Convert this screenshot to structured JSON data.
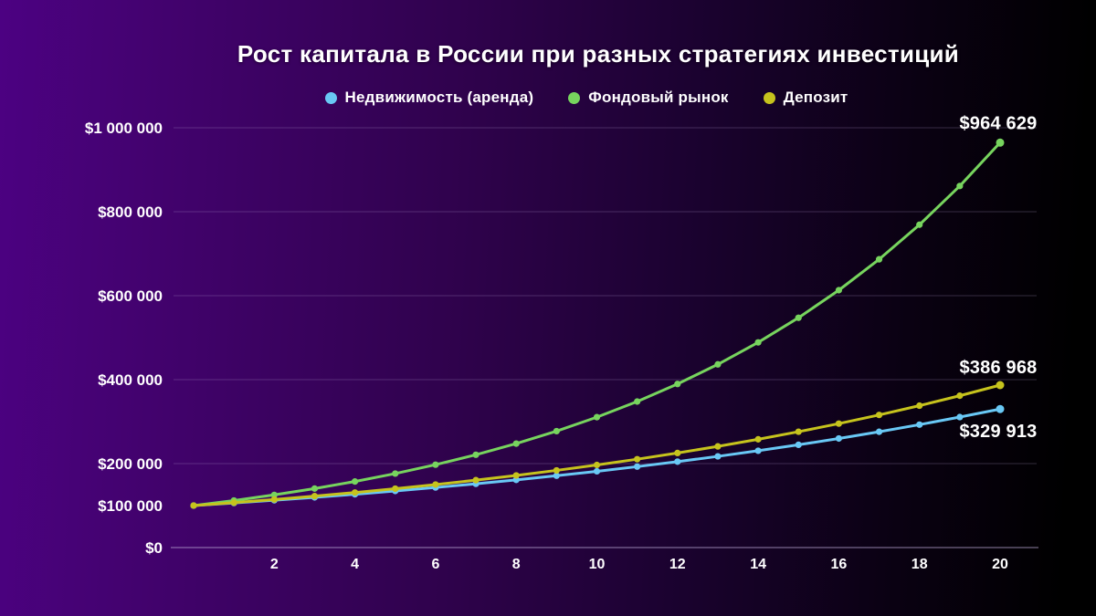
{
  "title": "Рост капитала в России при разных стратегиях инвестиций",
  "chart_data": {
    "type": "line",
    "title": "Рост капитала в России при разных стратегиях инвестиций",
    "xlabel": "",
    "ylabel": "",
    "xlim": [
      0,
      20
    ],
    "ylim": [
      0,
      1000000
    ],
    "grid": "horizontal",
    "legend_position": "top",
    "x": [
      0,
      1,
      2,
      3,
      4,
      5,
      6,
      7,
      8,
      9,
      10,
      11,
      12,
      13,
      14,
      15,
      16,
      17,
      18,
      19,
      20
    ],
    "x_ticks": [
      2,
      4,
      6,
      8,
      10,
      12,
      14,
      16,
      18,
      20
    ],
    "y_ticks": [
      {
        "value": 1000000,
        "label": "$1 000 000",
        "grid": true
      },
      {
        "value": 800000,
        "label": "$800 000",
        "grid": true
      },
      {
        "value": 600000,
        "label": "$600 000",
        "grid": true
      },
      {
        "value": 400000,
        "label": "$400 000",
        "grid": true
      },
      {
        "value": 200000,
        "label": "$200 000",
        "grid": true
      },
      {
        "value": 100000,
        "label": "$100 000",
        "grid": false
      },
      {
        "value": 0,
        "label": "$0",
        "grid": false
      }
    ],
    "series": [
      {
        "id": "real-estate-rent",
        "name": "Недвижимость (аренда)",
        "color": "#69c8f5",
        "end_label": "$329 913",
        "values": [
          100000,
          106150,
          112678,
          119608,
          126964,
          134772,
          143061,
          151859,
          161198,
          171112,
          181635,
          192806,
          204663,
          217250,
          230611,
          244793,
          259848,
          275829,
          292790,
          310797,
          329913
        ]
      },
      {
        "id": "stock-market",
        "name": "Фондовый рынок",
        "color": "#77d45e",
        "end_label": "$964 629",
        "values": [
          100000,
          112000,
          125440,
          140493,
          157352,
          176234,
          197382,
          221068,
          247596,
          277308,
          310585,
          347855,
          389598,
          436349,
          488711,
          547357,
          613039,
          686604,
          768997,
          861276,
          964629
        ]
      },
      {
        "id": "deposit",
        "name": "Депозит",
        "color": "#c6c31d",
        "end_label": "$386 968",
        "values": [
          100000,
          107000,
          114490,
          122504,
          131080,
          140255,
          150073,
          160578,
          171819,
          183846,
          196715,
          210485,
          225219,
          240985,
          257854,
          275904,
          295217,
          315882,
          337994,
          361654,
          386968
        ]
      }
    ]
  }
}
